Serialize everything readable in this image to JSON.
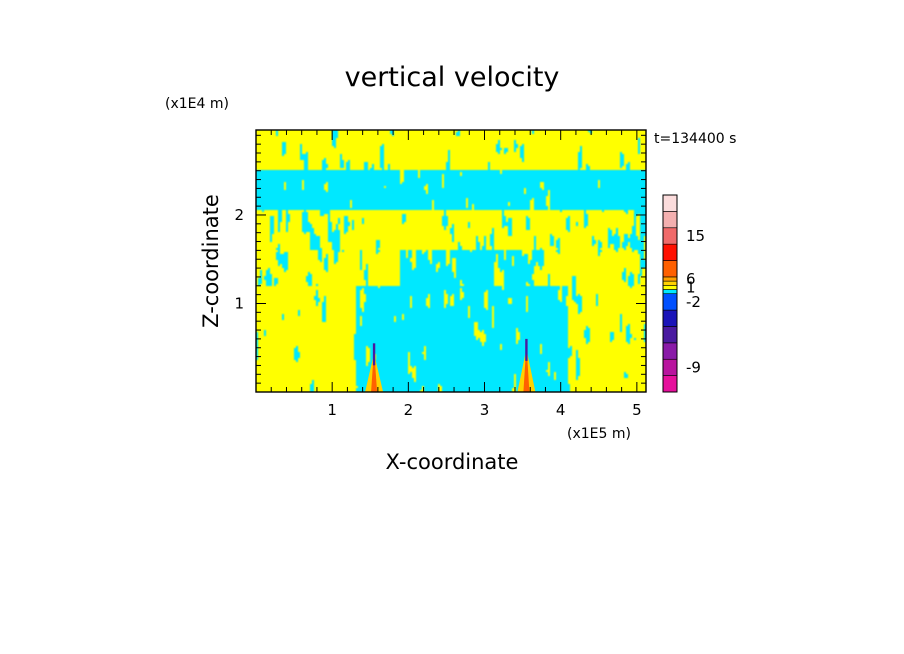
{
  "chart_data": {
    "type": "heatmap",
    "title": "vertical velocity",
    "xlabel": "X-coordinate",
    "ylabel": "Z-coordinate",
    "x_scale_label": "(x1E5 m)",
    "y_scale_label": "(x1E4 m)",
    "time_label": "t=134400 s",
    "xlim": [
      0,
      5.12
    ],
    "ylim": [
      0,
      2.96
    ],
    "x_ticks": [
      1,
      2,
      3,
      4,
      5
    ],
    "x_tick_labels": [
      "1",
      "2",
      "3",
      "4",
      "5"
    ],
    "y_ticks": [
      1,
      2
    ],
    "y_tick_labels": [
      "1",
      "2"
    ],
    "grid": false,
    "field_colors": {
      "negative": "#00e8ff",
      "positive": "#ffff00"
    },
    "colorbar": {
      "placement": "right",
      "colors_bottom_to_top": [
        "#e6109c",
        "#b8149e",
        "#8a1aa8",
        "#4a1aa0",
        "#1a14b8",
        "#0050ff",
        "#00e8ff",
        "#ffff00",
        "#ffd200",
        "#ffa000",
        "#ff6000",
        "#ff1000",
        "#f06a6a",
        "#f4b0b0",
        "#fbdcdc"
      ],
      "tick_labels": [
        {
          "label": "-9",
          "index": 1
        },
        {
          "label": "-2",
          "index": 5
        },
        {
          "label": "1",
          "index": 7
        },
        {
          "label": "6",
          "index": 9
        },
        {
          "label": "15",
          "index": 12
        }
      ]
    },
    "features": [
      {
        "x": 1.55,
        "z": 0.55,
        "kind": "plume"
      },
      {
        "x": 3.55,
        "z": 0.6,
        "kind": "plume"
      }
    ]
  }
}
